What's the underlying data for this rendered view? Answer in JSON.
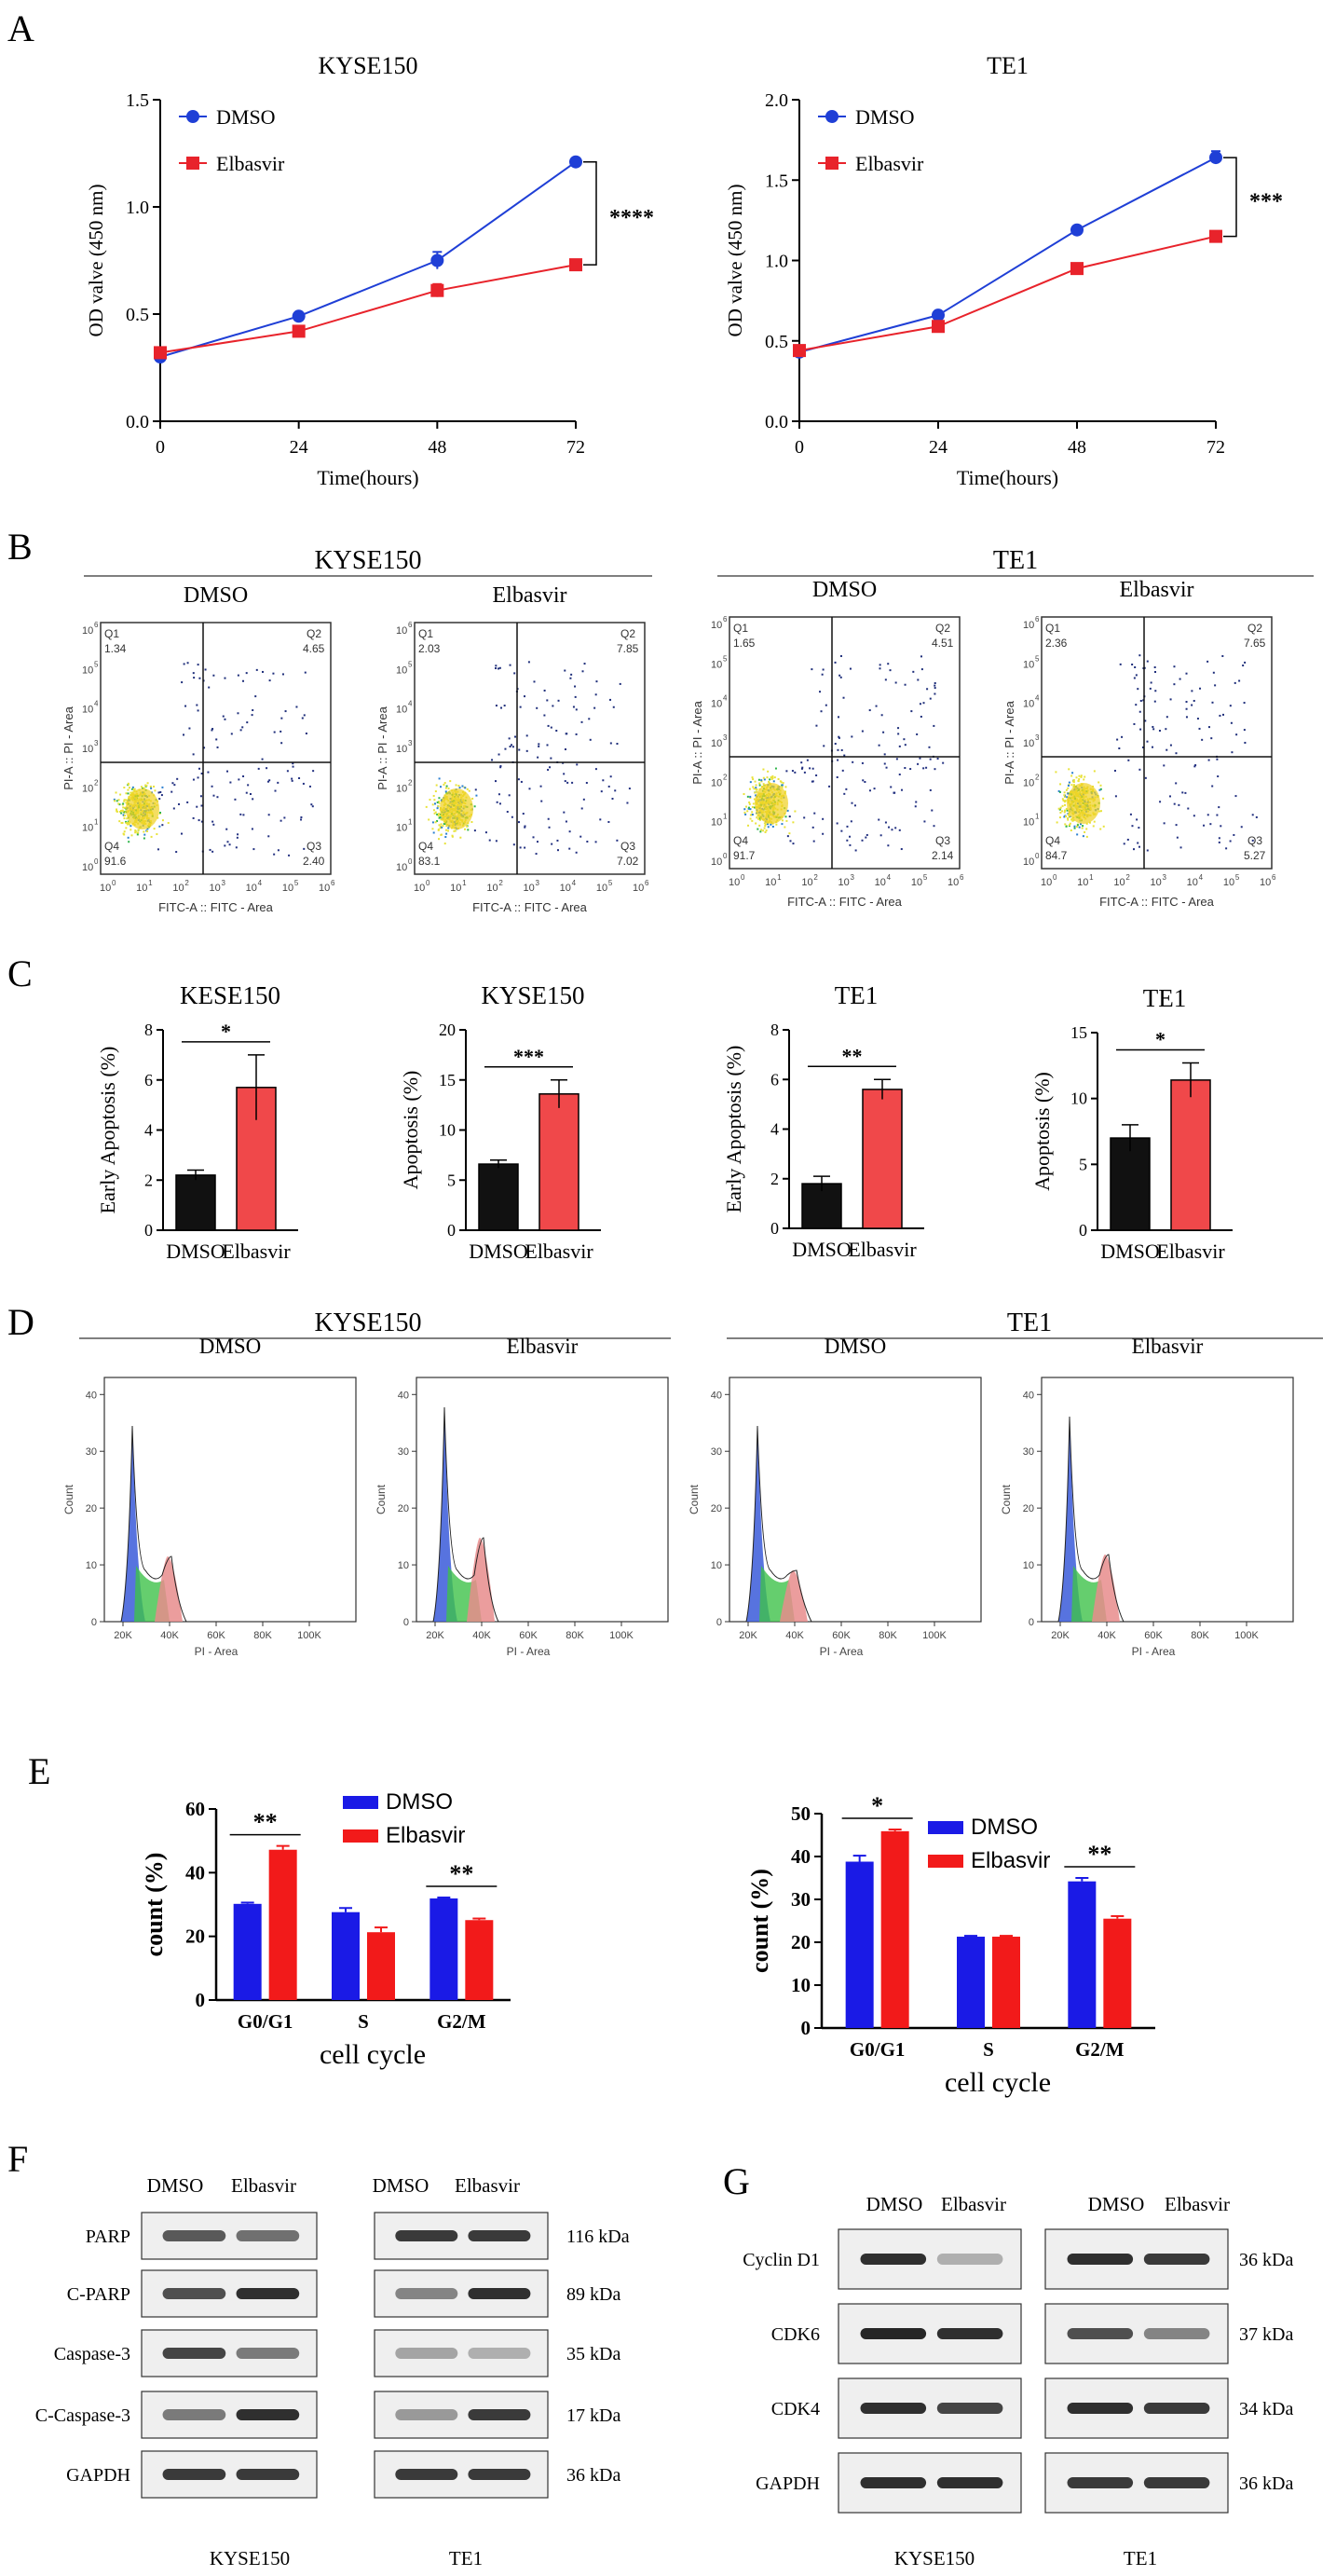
{
  "panels": {
    "A": {
      "letter": "A",
      "charts": [
        {
          "title": "KYSE150",
          "ylabel": "OD valve (450 nm)",
          "xlabel": "Time(hours)",
          "yticks": [
            "0.0",
            "0.5",
            "1.0",
            "1.5"
          ],
          "xticks": [
            "0",
            "24",
            "48",
            "72"
          ],
          "legend": [
            "DMSO",
            "Elbasvir"
          ],
          "sig": "****"
        },
        {
          "title": "TE1",
          "ylabel": "OD valve (450 nm)",
          "xlabel": "Time(hours)",
          "yticks": [
            "0.0",
            "0.5",
            "1.0",
            "1.5",
            "2.0"
          ],
          "xticks": [
            "0",
            "24",
            "48",
            "72"
          ],
          "legend": [
            "DMSO",
            "Elbasvir"
          ],
          "sig": "***"
        }
      ]
    },
    "B": {
      "letter": "B",
      "group_titles": [
        "KYSE150",
        "TE1"
      ],
      "plots": [
        {
          "title": "DMSO",
          "q1": "1.34",
          "q2": "4.65",
          "q3": "2.40",
          "q4": "91.6"
        },
        {
          "title": "Elbasvir",
          "q1": "2.03",
          "q2": "7.85",
          "q3": "7.02",
          "q4": "83.1"
        },
        {
          "title": "DMSO",
          "q1": "1.65",
          "q2": "4.51",
          "q3": "2.14",
          "q4": "91.7"
        },
        {
          "title": "Elbasvir",
          "q1": "2.36",
          "q2": "7.65",
          "q3": "5.27",
          "q4": "84.7"
        }
      ],
      "quad_labels": [
        "Q1",
        "Q2",
        "Q3",
        "Q4"
      ],
      "ylabel": "PI-A :: PI - Area",
      "xlabel": "FITC-A :: FITC - Area",
      "ticks": [
        "0",
        "1",
        "2",
        "3",
        "4",
        "5",
        "6"
      ]
    },
    "C": {
      "letter": "C",
      "charts": [
        {
          "title": "KESE150",
          "ylabel": "Early Apoptosis (%)",
          "yticks": [
            "0",
            "2",
            "4",
            "6",
            "8"
          ],
          "sig": "*"
        },
        {
          "title": "KYSE150",
          "ylabel": "Apoptosis (%)",
          "yticks": [
            "0",
            "5",
            "10",
            "15",
            "20"
          ],
          "sig": "***"
        },
        {
          "title": "TE1",
          "ylabel": "Early Apoptosis (%)",
          "yticks": [
            "0",
            "2",
            "4",
            "6",
            "8"
          ],
          "sig": "**"
        },
        {
          "title": "TE1",
          "ylabel": "Apoptosis (%)",
          "yticks": [
            "0",
            "5",
            "10",
            "15"
          ],
          "sig": "*"
        }
      ],
      "categories": [
        "DMSO",
        "Elbasvir"
      ]
    },
    "D": {
      "letter": "D",
      "group_titles": [
        "KYSE150",
        "TE1"
      ],
      "plots": [
        {
          "title": "DMSO"
        },
        {
          "title": "Elbasvir"
        },
        {
          "title": "DMSO"
        },
        {
          "title": "Elbasvir"
        }
      ],
      "ylabel": "Count",
      "xlabel": "PI - Area",
      "yticks": [
        "0",
        "10",
        "20",
        "30",
        "40"
      ],
      "xticks": [
        "20K",
        "40K",
        "60K",
        "80K",
        "100K"
      ]
    },
    "E": {
      "letter": "E",
      "charts": [
        {
          "ylabel": "count (%)",
          "xlabel": "cell cycle",
          "yticks": [
            "0",
            "20",
            "40",
            "60"
          ],
          "sigs": [
            "**",
            "**"
          ]
        },
        {
          "ylabel": "count (%)",
          "xlabel": "cell cycle",
          "yticks": [
            "0",
            "10",
            "20",
            "30",
            "40",
            "50"
          ],
          "sigs": [
            "*",
            "**"
          ]
        }
      ],
      "legend": [
        "DMSO",
        "Elbasvir"
      ]
    },
    "F": {
      "letter": "F",
      "col_labels": [
        "DMSO",
        "Elbasvir",
        "DMSO",
        "Elbasvir"
      ],
      "rows": [
        {
          "label": "PARP",
          "kda": "116 kDa"
        },
        {
          "label": "C-PARP",
          "kda": "89 kDa"
        },
        {
          "label": "Caspase-3",
          "kda": "35 kDa"
        },
        {
          "label": "C-Caspase-3",
          "kda": "17 kDa"
        },
        {
          "label": "GAPDH",
          "kda": "36 kDa"
        }
      ],
      "bottom_labels": [
        "KYSE150",
        "TE1"
      ]
    },
    "G": {
      "letter": "G",
      "col_labels": [
        "DMSO",
        "Elbasvir",
        "DMSO",
        "Elbasvir"
      ],
      "rows": [
        {
          "label": "Cyclin D1",
          "kda": "36 kDa"
        },
        {
          "label": "CDK6",
          "kda": "37 kDa"
        },
        {
          "label": "CDK4",
          "kda": "34 kDa"
        },
        {
          "label": "GAPDH",
          "kda": "36 kDa"
        }
      ],
      "bottom_labels": [
        "KYSE150",
        "TE1"
      ]
    }
  },
  "colors": {
    "dmso_line": "#1f3fd6",
    "elba_line": "#e8232b",
    "bar_black": "#111111",
    "bar_red": "#f0484a",
    "bar_blue": "#1a1ae6",
    "bar_red2": "#f21a1a"
  },
  "chart_data": [
    {
      "type": "line",
      "title": "KYSE150",
      "xlabel": "Time(hours)",
      "ylabel": "OD valve (450 nm)",
      "x": [
        0,
        24,
        48,
        72
      ],
      "ylim": [
        0,
        1.5
      ],
      "series": [
        {
          "name": "DMSO",
          "values": [
            0.3,
            0.49,
            0.75,
            1.21
          ],
          "err": [
            0.02,
            0.01,
            0.04,
            0.01
          ]
        },
        {
          "name": "Elbasvir",
          "values": [
            0.32,
            0.42,
            0.61,
            0.73
          ],
          "err": [
            0.01,
            0.01,
            0.03,
            0.01
          ]
        }
      ]
    },
    {
      "type": "line",
      "title": "TE1",
      "xlabel": "Time(hours)",
      "ylabel": "OD valve (450 nm)",
      "x": [
        0,
        24,
        48,
        72
      ],
      "ylim": [
        0,
        2.0
      ],
      "series": [
        {
          "name": "DMSO",
          "values": [
            0.43,
            0.66,
            1.19,
            1.64
          ],
          "err": [
            0.01,
            0.02,
            0.02,
            0.04
          ]
        },
        {
          "name": "Elbasvir",
          "values": [
            0.44,
            0.59,
            0.95,
            1.15
          ],
          "err": [
            0.01,
            0.01,
            0.01,
            0.02
          ]
        }
      ]
    },
    {
      "type": "bar",
      "title": "KESE150",
      "ylabel": "Early Apoptosis (%)",
      "categories": [
        "DMSO",
        "Elbasvir"
      ],
      "values": [
        2.2,
        5.7
      ],
      "err": [
        0.2,
        1.3
      ],
      "ylim": [
        0,
        8
      ]
    },
    {
      "type": "bar",
      "title": "KYSE150",
      "ylabel": "Apoptosis (%)",
      "categories": [
        "DMSO",
        "Elbasvir"
      ],
      "values": [
        6.6,
        13.6
      ],
      "err": [
        0.4,
        1.4
      ],
      "ylim": [
        0,
        20
      ]
    },
    {
      "type": "bar",
      "title": "TE1",
      "ylabel": "Early Apoptosis (%)",
      "categories": [
        "DMSO",
        "Elbasvir"
      ],
      "values": [
        1.8,
        5.6
      ],
      "err": [
        0.3,
        0.4
      ],
      "ylim": [
        0,
        8
      ]
    },
    {
      "type": "bar",
      "title": "TE1",
      "ylabel": "Apoptosis (%)",
      "categories": [
        "DMSO",
        "Elbasvir"
      ],
      "values": [
        7.0,
        11.4
      ],
      "err": [
        1.0,
        1.3
      ],
      "ylim": [
        0,
        15
      ]
    },
    {
      "type": "bar",
      "xlabel": "cell cycle",
      "ylabel": "count (%)",
      "categories": [
        "G0/G1",
        "S",
        "G2/M"
      ],
      "ylim": [
        0,
        60
      ],
      "series": [
        {
          "name": "DMSO",
          "values": [
            30.2,
            27.6,
            31.9
          ],
          "err": [
            0.4,
            1.3,
            0.3
          ]
        },
        {
          "name": "Elbasvir",
          "values": [
            47.2,
            21.3,
            25.1
          ],
          "err": [
            1.2,
            1.5,
            0.5
          ]
        }
      ]
    },
    {
      "type": "bar",
      "xlabel": "cell cycle",
      "ylabel": "count (%)",
      "categories": [
        "G0/G1",
        "S",
        "G2/M"
      ],
      "ylim": [
        0,
        50
      ],
      "series": [
        {
          "name": "DMSO",
          "values": [
            38.8,
            21.3,
            34.2
          ],
          "err": [
            1.4,
            0.2,
            0.8
          ]
        },
        {
          "name": "Elbasvir",
          "values": [
            45.9,
            21.3,
            25.5
          ],
          "err": [
            0.4,
            0.2,
            0.6
          ]
        }
      ]
    }
  ]
}
